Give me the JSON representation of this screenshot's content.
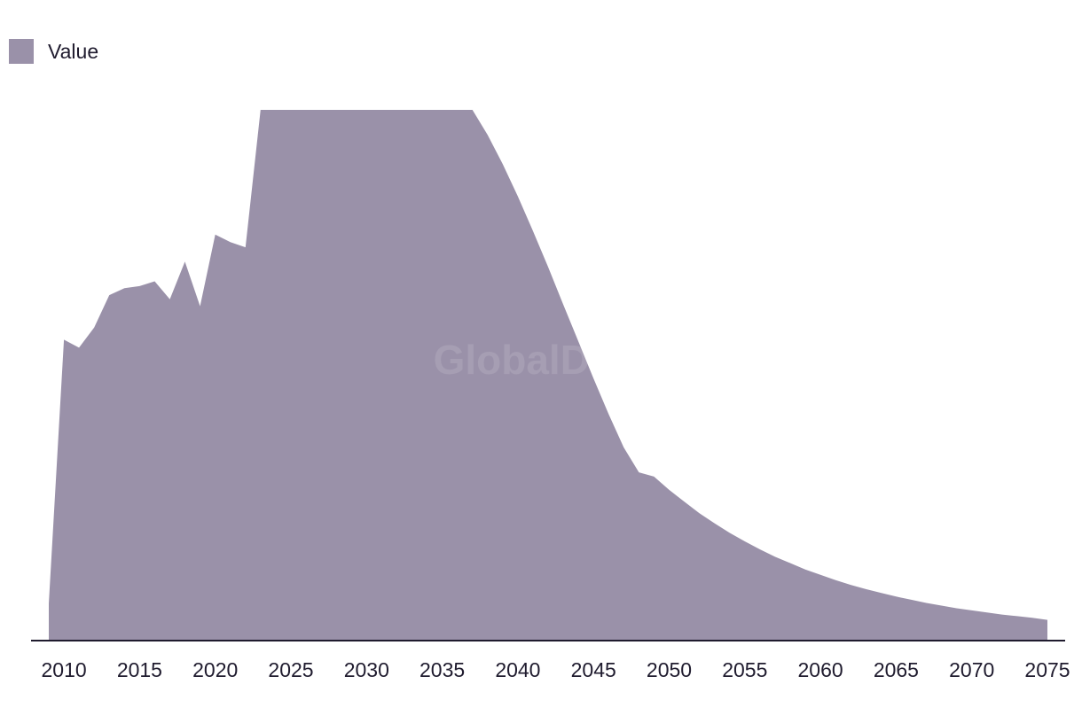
{
  "chart_data": {
    "type": "area",
    "series": [
      {
        "name": "Value",
        "color": "#9a91a9",
        "points": [
          [
            2009,
            0.07
          ],
          [
            2010,
            0.567
          ],
          [
            2011,
            0.552
          ],
          [
            2012,
            0.59
          ],
          [
            2013,
            0.651
          ],
          [
            2014,
            0.664
          ],
          [
            2015,
            0.668
          ],
          [
            2016,
            0.677
          ],
          [
            2017,
            0.643
          ],
          [
            2018,
            0.714
          ],
          [
            2019,
            0.63
          ],
          [
            2020,
            0.765
          ],
          [
            2021,
            0.751
          ],
          [
            2022,
            0.741
          ],
          [
            2023,
            1.0
          ],
          [
            2024,
            1.0
          ],
          [
            2025,
            1.0
          ],
          [
            2026,
            1.0
          ],
          [
            2027,
            1.0
          ],
          [
            2028,
            1.0
          ],
          [
            2029,
            1.0
          ],
          [
            2030,
            1.0
          ],
          [
            2031,
            1.0
          ],
          [
            2032,
            1.0
          ],
          [
            2033,
            1.0
          ],
          [
            2034,
            1.0
          ],
          [
            2035,
            1.0
          ],
          [
            2036,
            1.0
          ],
          [
            2037,
            1.0
          ],
          [
            2038,
            0.953
          ],
          [
            2039,
            0.898
          ],
          [
            2040,
            0.837
          ],
          [
            2041,
            0.772
          ],
          [
            2042,
            0.704
          ],
          [
            2043,
            0.633
          ],
          [
            2044,
            0.564
          ],
          [
            2045,
            0.494
          ],
          [
            2046,
            0.427
          ],
          [
            2047,
            0.364
          ],
          [
            2048,
            0.317
          ],
          [
            2049,
            0.309
          ],
          [
            2050,
            0.284
          ],
          [
            2051,
            0.262
          ],
          [
            2052,
            0.24
          ],
          [
            2053,
            0.221
          ],
          [
            2054,
            0.203
          ],
          [
            2055,
            0.187
          ],
          [
            2056,
            0.172
          ],
          [
            2057,
            0.158
          ],
          [
            2058,
            0.146
          ],
          [
            2059,
            0.134
          ],
          [
            2060,
            0.124
          ],
          [
            2061,
            0.114
          ],
          [
            2062,
            0.105
          ],
          [
            2063,
            0.097
          ],
          [
            2064,
            0.09
          ],
          [
            2065,
            0.083
          ],
          [
            2066,
            0.077
          ],
          [
            2067,
            0.071
          ],
          [
            2068,
            0.066
          ],
          [
            2069,
            0.061
          ],
          [
            2070,
            0.057
          ],
          [
            2071,
            0.053
          ],
          [
            2072,
            0.049
          ],
          [
            2073,
            0.046
          ],
          [
            2074,
            0.043
          ],
          [
            2075,
            0.039
          ]
        ]
      }
    ],
    "x_ticks": [
      "2010",
      "2015",
      "2020",
      "2025",
      "2030",
      "2035",
      "2040",
      "2045",
      "2050",
      "2055",
      "2060",
      "2065",
      "2070",
      "2075"
    ],
    "xlim": [
      2009,
      2075
    ],
    "ylim": [
      0,
      1
    ],
    "y_axis_visible": false,
    "grid": false,
    "legend_position": "top-left",
    "watermark": "GlobalData",
    "title": "",
    "xlabel": "",
    "ylabel": ""
  }
}
